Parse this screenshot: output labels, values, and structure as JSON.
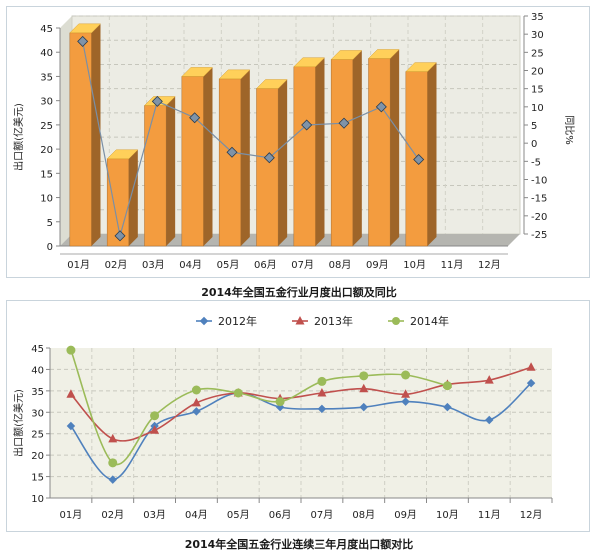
{
  "chart_data": [
    {
      "type": "bar",
      "title": "2014年全国五金行业月度出口额及同比",
      "categories": [
        "01月",
        "02月",
        "03月",
        "04月",
        "05月",
        "06月",
        "07月",
        "08月",
        "09月",
        "10月",
        "11月",
        "12月"
      ],
      "series": [
        {
          "values": [
            44,
            18,
            29,
            35,
            34.5,
            32.5,
            37,
            38.5,
            38.7,
            36,
            null,
            null
          ],
          "color": "#f39c3f"
        },
        {
          "type": "line",
          "axis": "right",
          "values": [
            28,
            -25.5,
            11.5,
            7,
            -2.5,
            -4,
            5,
            5.5,
            10,
            -4.5,
            null,
            null
          ],
          "color": "#7a8fa6"
        }
      ],
      "ylabel": "出口额(亿美元)",
      "y2label": "同比%",
      "ylim": [
        0,
        45
      ],
      "y2lim": [
        -25,
        35
      ],
      "yticks": [
        0,
        5,
        10,
        15,
        20,
        25,
        30,
        35,
        40,
        45
      ],
      "y2ticks": [
        -25,
        -20,
        -15,
        -10,
        -5,
        0,
        5,
        10,
        15,
        20,
        25,
        30,
        35
      ],
      "grid": true
    },
    {
      "type": "line",
      "title": "2014年全国五金行业连续三年月度出口额对比",
      "categories": [
        "01月",
        "02月",
        "03月",
        "04月",
        "05月",
        "06月",
        "07月",
        "08月",
        "09月",
        "10月",
        "11月",
        "12月"
      ],
      "series": [
        {
          "name": "2012年",
          "values": [
            26.8,
            14.3,
            26.8,
            30.2,
            34.5,
            31.2,
            30.8,
            31.2,
            32.5,
            31.2,
            28.2,
            36.8
          ],
          "color": "#4f81bd",
          "marker": "diamond"
        },
        {
          "name": "2013年",
          "values": [
            34.2,
            23.8,
            25.8,
            32.2,
            34.5,
            33.2,
            34.5,
            35.5,
            34.2,
            36.5,
            37.5,
            40.5
          ],
          "color": "#c0504d",
          "marker": "triangle"
        },
        {
          "name": "2014年",
          "values": [
            44.5,
            18.2,
            29.2,
            35.2,
            34.5,
            32.5,
            37.2,
            38.5,
            38.7,
            36.2,
            null,
            null
          ],
          "color": "#9bbb59",
          "marker": "circle"
        }
      ],
      "ylabel": "出口额(亿美元)",
      "ylim": [
        10,
        45
      ],
      "yticks": [
        10,
        15,
        20,
        25,
        30,
        35,
        40,
        45
      ],
      "legend": "top",
      "grid": true
    }
  ]
}
